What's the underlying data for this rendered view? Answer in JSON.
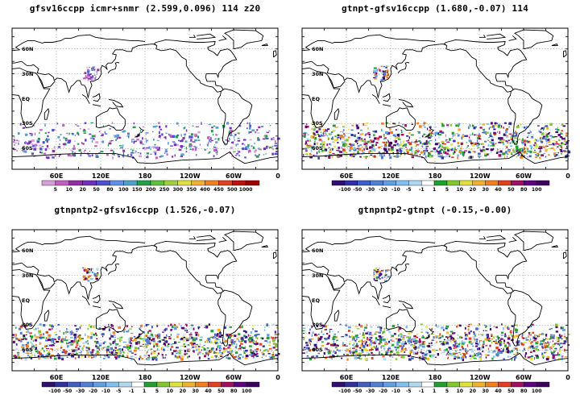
{
  "panels": [
    {
      "title": "gfsv16ccpp icmr+snmr (2.599,0.096) 114 z20",
      "colorbar": {
        "labels": [
          "5",
          "10",
          "20",
          "50",
          "80",
          "100",
          "150",
          "200",
          "250",
          "300",
          "350",
          "400",
          "450",
          "500",
          "1000"
        ],
        "colors": [
          "#d8a0d8",
          "#c060c0",
          "#9030a0",
          "#7030c0",
          "#5050d0",
          "#6090e0",
          "#50a0c8",
          "#20a050",
          "#60c040",
          "#a0d040",
          "#e0e040",
          "#f0b030",
          "#f08020",
          "#e04020",
          "#c01010",
          "#a00000"
        ]
      }
    },
    {
      "title": "gtnpt-gfsv16ccpp (1.680,-0.07) 114",
      "colorbar": {
        "labels": [
          "-100",
          "-50",
          "-30",
          "-20",
          "-10",
          "-5",
          "-1",
          "1",
          "5",
          "10",
          "20",
          "30",
          "40",
          "50",
          "80",
          "100"
        ],
        "colors": [
          "#301070",
          "#3030a0",
          "#4060c0",
          "#5080d0",
          "#60a0e0",
          "#80c0f0",
          "#b0d8f0",
          "#ffffff",
          "#20a030",
          "#80c830",
          "#e0e040",
          "#f0b030",
          "#f08020",
          "#e04020",
          "#a01060",
          "#600080",
          "#400060"
        ]
      }
    },
    {
      "title": "gtnpntp2-gfsv16ccpp (1.526,-0.07)",
      "colorbar": {
        "labels": [
          "-100",
          "-50",
          "-30",
          "-20",
          "-10",
          "-5",
          "-1",
          "1",
          "5",
          "10",
          "20",
          "30",
          "40",
          "50",
          "80",
          "100"
        ],
        "colors": [
          "#301070",
          "#3030a0",
          "#4060c0",
          "#5080d0",
          "#60a0e0",
          "#80c0f0",
          "#b0d8f0",
          "#ffffff",
          "#20a030",
          "#80c830",
          "#e0e040",
          "#f0b030",
          "#f08020",
          "#e04020",
          "#a01060",
          "#600080",
          "#400060"
        ]
      }
    },
    {
      "title": "gtnpntp2-gtnpt (-0.15,-0.00)",
      "colorbar": {
        "labels": [
          "-100",
          "-50",
          "-30",
          "-20",
          "-10",
          "-5",
          "-1",
          "1",
          "5",
          "10",
          "20",
          "30",
          "40",
          "50",
          "80",
          "100"
        ],
        "colors": [
          "#301070",
          "#3030a0",
          "#4060c0",
          "#5080d0",
          "#60a0e0",
          "#80c0f0",
          "#b0d8f0",
          "#ffffff",
          "#20a030",
          "#80c830",
          "#e0e040",
          "#f0b030",
          "#f08020",
          "#e04020",
          "#a01060",
          "#600080",
          "#400060"
        ]
      }
    }
  ],
  "axes": {
    "lat_labels": [
      "60N",
      "30N",
      "EQ",
      "30S",
      "60S"
    ],
    "lon_labels": [
      "60E",
      "120E",
      "180",
      "120W",
      "60W",
      "0"
    ]
  }
}
